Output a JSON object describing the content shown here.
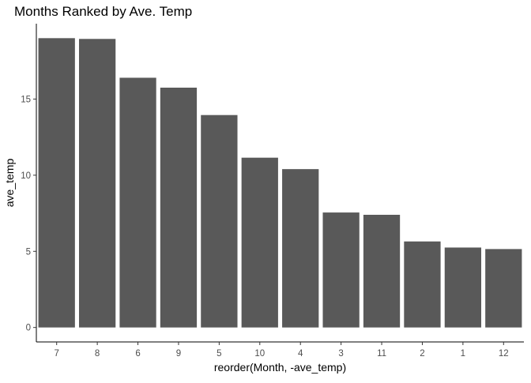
{
  "chart_data": {
    "type": "bar",
    "title": "Months Ranked by Ave. Temp",
    "xlabel": "reorder(Month, -ave_temp)",
    "ylabel": "ave_temp",
    "categories": [
      "7",
      "8",
      "6",
      "9",
      "5",
      "10",
      "4",
      "3",
      "11",
      "2",
      "1",
      "12"
    ],
    "values": [
      19.0,
      18.95,
      16.4,
      15.75,
      13.95,
      11.15,
      10.4,
      7.55,
      7.4,
      5.65,
      5.25,
      5.15
    ],
    "y_ticks": [
      0,
      5,
      10,
      15
    ],
    "ylim": [
      -0.95,
      19.95
    ],
    "bar_color": "#595959",
    "grid": false,
    "legend": "none"
  }
}
